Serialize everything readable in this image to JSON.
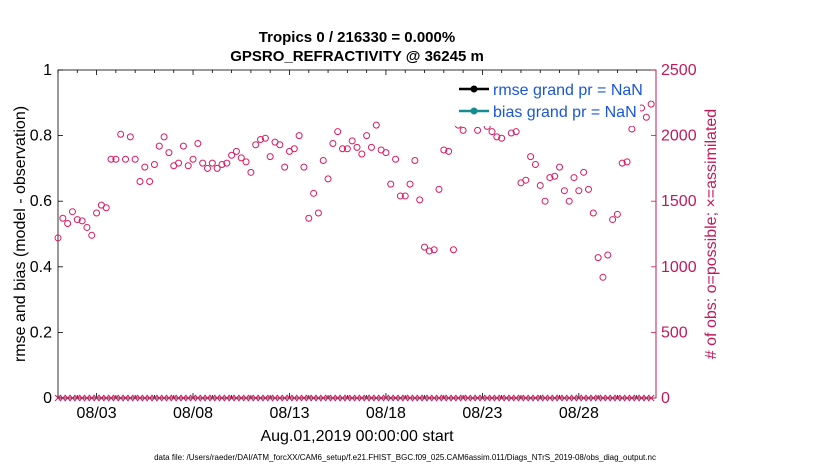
{
  "chart_data": {
    "type": "scatter",
    "title": "Tropics 0 / 216330 = 0.000%",
    "subtitle": "GPSRO_REFRACTIVITY @ 36245 m",
    "ylabel_left": "rmse and bias (model - observation)",
    "ylabel_right": "# of obs: o=possible; ×=assimilated",
    "xlabel": "Aug.01,2019 00:00:00 start",
    "footnote": "data file: /Users/raeder/DAI/ATM_forcXX/CAM6_setup/f.e21.FHIST_BGC.f09_025.CAM6assim.011/Diags_NTrS_2019-08/obs_diag_output.nc",
    "ylim_left": [
      0,
      1
    ],
    "ylim_right": [
      0,
      2500
    ],
    "xlim": [
      0,
      31
    ],
    "yticks_left": [
      "0",
      "0.2",
      "0.4",
      "0.6",
      "0.8",
      "1"
    ],
    "yticks_left_values": [
      0,
      0.2,
      0.4,
      0.6,
      0.8,
      1
    ],
    "yticks_right": [
      "0",
      "500",
      "1000",
      "1500",
      "2000",
      "2500"
    ],
    "yticks_right_values": [
      0,
      500,
      1000,
      1500,
      2000,
      2500
    ],
    "xticks": [
      "08/03",
      "08/08",
      "08/13",
      "08/18",
      "08/23",
      "08/28"
    ],
    "xticks_values": [
      2,
      7,
      12,
      17,
      22,
      27
    ],
    "legend": [
      "rmse grand pr = NaN",
      "bias grand pr = NaN"
    ],
    "colors": {
      "possible": "#d81b60",
      "axis_right": "#c2185b",
      "legend_text": "#1a56db",
      "rmse": "#000000",
      "bias": "#138d90"
    },
    "series": [
      {
        "name": "possible (obs count)",
        "marker": "o",
        "values": [
          [
            0.0,
            1220
          ],
          [
            0.25,
            1370
          ],
          [
            0.5,
            1330
          ],
          [
            0.75,
            1420
          ],
          [
            1.0,
            1360
          ],
          [
            1.25,
            1350
          ],
          [
            1.5,
            1300
          ],
          [
            1.75,
            1240
          ],
          [
            2.0,
            1410
          ],
          [
            2.25,
            1470
          ],
          [
            2.5,
            1450
          ],
          [
            2.75,
            1820
          ],
          [
            3.0,
            1820
          ],
          [
            3.25,
            2010
          ],
          [
            3.5,
            1820
          ],
          [
            3.75,
            1990
          ],
          [
            4.0,
            1820
          ],
          [
            4.25,
            1650
          ],
          [
            4.5,
            1760
          ],
          [
            4.75,
            1650
          ],
          [
            5.0,
            1780
          ],
          [
            5.25,
            1920
          ],
          [
            5.5,
            1990
          ],
          [
            5.75,
            1870
          ],
          [
            6.0,
            1770
          ],
          [
            6.25,
            1790
          ],
          [
            6.5,
            1920
          ],
          [
            6.75,
            1770
          ],
          [
            7.0,
            1820
          ],
          [
            7.25,
            1940
          ],
          [
            7.5,
            1790
          ],
          [
            7.75,
            1750
          ],
          [
            8.0,
            1790
          ],
          [
            8.25,
            1750
          ],
          [
            8.5,
            1780
          ],
          [
            8.75,
            1790
          ],
          [
            9.0,
            1850
          ],
          [
            9.25,
            1880
          ],
          [
            9.5,
            1830
          ],
          [
            9.75,
            1800
          ],
          [
            10.0,
            1720
          ],
          [
            10.25,
            1930
          ],
          [
            10.5,
            1970
          ],
          [
            10.75,
            1980
          ],
          [
            11.0,
            1840
          ],
          [
            11.25,
            1950
          ],
          [
            11.5,
            1930
          ],
          [
            11.75,
            1760
          ],
          [
            12.0,
            1880
          ],
          [
            12.25,
            1900
          ],
          [
            12.5,
            2000
          ],
          [
            12.75,
            1760
          ],
          [
            13.0,
            1370
          ],
          [
            13.25,
            1560
          ],
          [
            13.5,
            1410
          ],
          [
            13.75,
            1810
          ],
          [
            14.0,
            1670
          ],
          [
            14.25,
            1940
          ],
          [
            14.5,
            2030
          ],
          [
            14.75,
            1900
          ],
          [
            15.0,
            1900
          ],
          [
            15.25,
            1960
          ],
          [
            15.5,
            1910
          ],
          [
            15.75,
            1860
          ],
          [
            16.0,
            2000
          ],
          [
            16.25,
            1910
          ],
          [
            16.5,
            2080
          ],
          [
            16.75,
            1890
          ],
          [
            17.0,
            1870
          ],
          [
            17.25,
            1630
          ],
          [
            17.5,
            1820
          ],
          [
            17.75,
            1540
          ],
          [
            18.0,
            1540
          ],
          [
            18.25,
            1630
          ],
          [
            18.5,
            1810
          ],
          [
            18.75,
            1510
          ],
          [
            19.0,
            1150
          ],
          [
            19.25,
            1120
          ],
          [
            19.5,
            1130
          ],
          [
            19.75,
            1590
          ],
          [
            20.0,
            1890
          ],
          [
            20.25,
            1880
          ],
          [
            20.5,
            1130
          ],
          [
            20.75,
            2080
          ],
          [
            21.0,
            2040
          ],
          [
            21.25,
            2220
          ],
          [
            21.5,
            2180
          ],
          [
            21.75,
            2040
          ],
          [
            22.0,
            2190
          ],
          [
            22.25,
            2070
          ],
          [
            22.5,
            2030
          ],
          [
            22.75,
            1990
          ],
          [
            23.0,
            1980
          ],
          [
            23.25,
            2100
          ],
          [
            23.5,
            2020
          ],
          [
            23.75,
            2030
          ],
          [
            24.0,
            1640
          ],
          [
            24.25,
            1660
          ],
          [
            24.5,
            1840
          ],
          [
            24.75,
            1780
          ],
          [
            25.0,
            1620
          ],
          [
            25.25,
            1500
          ],
          [
            25.5,
            1680
          ],
          [
            25.75,
            1690
          ],
          [
            26.0,
            1760
          ],
          [
            26.25,
            1580
          ],
          [
            26.5,
            1500
          ],
          [
            26.75,
            1680
          ],
          [
            27.0,
            1580
          ],
          [
            27.25,
            1720
          ],
          [
            27.5,
            1590
          ],
          [
            27.75,
            1410
          ],
          [
            28.0,
            1070
          ],
          [
            28.25,
            920
          ],
          [
            28.5,
            1090
          ],
          [
            28.75,
            1360
          ],
          [
            29.0,
            1400
          ],
          [
            29.25,
            1790
          ],
          [
            29.5,
            1800
          ],
          [
            29.75,
            2050
          ],
          [
            30.0,
            2210
          ],
          [
            30.25,
            2210
          ],
          [
            30.5,
            2140
          ],
          [
            30.75,
            2240
          ]
        ]
      },
      {
        "name": "assimilated (obs count)",
        "marker": "x",
        "values": [
          [
            0.0,
            0
          ],
          [
            0.25,
            0
          ],
          [
            0.5,
            0
          ],
          [
            0.75,
            0
          ],
          [
            1.0,
            0
          ],
          [
            1.25,
            0
          ],
          [
            1.5,
            0
          ],
          [
            1.75,
            0
          ],
          [
            2.0,
            0
          ],
          [
            2.25,
            0
          ],
          [
            2.5,
            0
          ],
          [
            2.75,
            0
          ],
          [
            3.0,
            0
          ],
          [
            3.25,
            0
          ],
          [
            3.5,
            0
          ],
          [
            3.75,
            0
          ],
          [
            4.0,
            0
          ],
          [
            4.25,
            0
          ],
          [
            4.5,
            0
          ],
          [
            4.75,
            0
          ],
          [
            5.0,
            0
          ],
          [
            5.25,
            0
          ],
          [
            5.5,
            0
          ],
          [
            5.75,
            0
          ],
          [
            6.0,
            0
          ],
          [
            6.25,
            0
          ],
          [
            6.5,
            0
          ],
          [
            6.75,
            0
          ],
          [
            7.0,
            0
          ],
          [
            7.25,
            0
          ],
          [
            7.5,
            0
          ],
          [
            7.75,
            0
          ],
          [
            8.0,
            0
          ],
          [
            8.25,
            0
          ],
          [
            8.5,
            0
          ],
          [
            8.75,
            0
          ],
          [
            9.0,
            0
          ],
          [
            9.25,
            0
          ],
          [
            9.5,
            0
          ],
          [
            9.75,
            0
          ],
          [
            10.0,
            0
          ],
          [
            10.25,
            0
          ],
          [
            10.5,
            0
          ],
          [
            10.75,
            0
          ],
          [
            11.0,
            0
          ],
          [
            11.25,
            0
          ],
          [
            11.5,
            0
          ],
          [
            11.75,
            0
          ],
          [
            12.0,
            0
          ],
          [
            12.25,
            0
          ],
          [
            12.5,
            0
          ],
          [
            12.75,
            0
          ],
          [
            13.0,
            0
          ],
          [
            13.25,
            0
          ],
          [
            13.5,
            0
          ],
          [
            13.75,
            0
          ],
          [
            14.0,
            0
          ],
          [
            14.25,
            0
          ],
          [
            14.5,
            0
          ],
          [
            14.75,
            0
          ],
          [
            15.0,
            0
          ],
          [
            15.25,
            0
          ],
          [
            15.5,
            0
          ],
          [
            15.75,
            0
          ],
          [
            16.0,
            0
          ],
          [
            16.25,
            0
          ],
          [
            16.5,
            0
          ],
          [
            16.75,
            0
          ],
          [
            17.0,
            0
          ],
          [
            17.25,
            0
          ],
          [
            17.5,
            0
          ],
          [
            17.75,
            0
          ],
          [
            18.0,
            0
          ],
          [
            18.25,
            0
          ],
          [
            18.5,
            0
          ],
          [
            18.75,
            0
          ],
          [
            19.0,
            0
          ],
          [
            19.25,
            0
          ],
          [
            19.5,
            0
          ],
          [
            19.75,
            0
          ],
          [
            20.0,
            0
          ],
          [
            20.25,
            0
          ],
          [
            20.5,
            0
          ],
          [
            20.75,
            0
          ],
          [
            21.0,
            0
          ],
          [
            21.25,
            0
          ],
          [
            21.5,
            0
          ],
          [
            21.75,
            0
          ],
          [
            22.0,
            0
          ],
          [
            22.25,
            0
          ],
          [
            22.5,
            0
          ],
          [
            22.75,
            0
          ],
          [
            23.0,
            0
          ],
          [
            23.25,
            0
          ],
          [
            23.5,
            0
          ],
          [
            23.75,
            0
          ],
          [
            24.0,
            0
          ],
          [
            24.25,
            0
          ],
          [
            24.5,
            0
          ],
          [
            24.75,
            0
          ],
          [
            25.0,
            0
          ],
          [
            25.25,
            0
          ],
          [
            25.5,
            0
          ],
          [
            25.75,
            0
          ],
          [
            26.0,
            0
          ],
          [
            26.25,
            0
          ],
          [
            26.5,
            0
          ],
          [
            26.75,
            0
          ],
          [
            27.0,
            0
          ],
          [
            27.25,
            0
          ],
          [
            27.5,
            0
          ],
          [
            27.75,
            0
          ],
          [
            28.0,
            0
          ],
          [
            28.25,
            0
          ],
          [
            28.5,
            0
          ],
          [
            28.75,
            0
          ],
          [
            29.0,
            0
          ],
          [
            29.25,
            0
          ],
          [
            29.5,
            0
          ],
          [
            29.75,
            0
          ],
          [
            30.0,
            0
          ],
          [
            30.25,
            0
          ],
          [
            30.5,
            0
          ],
          [
            30.75,
            0
          ]
        ]
      }
    ]
  }
}
